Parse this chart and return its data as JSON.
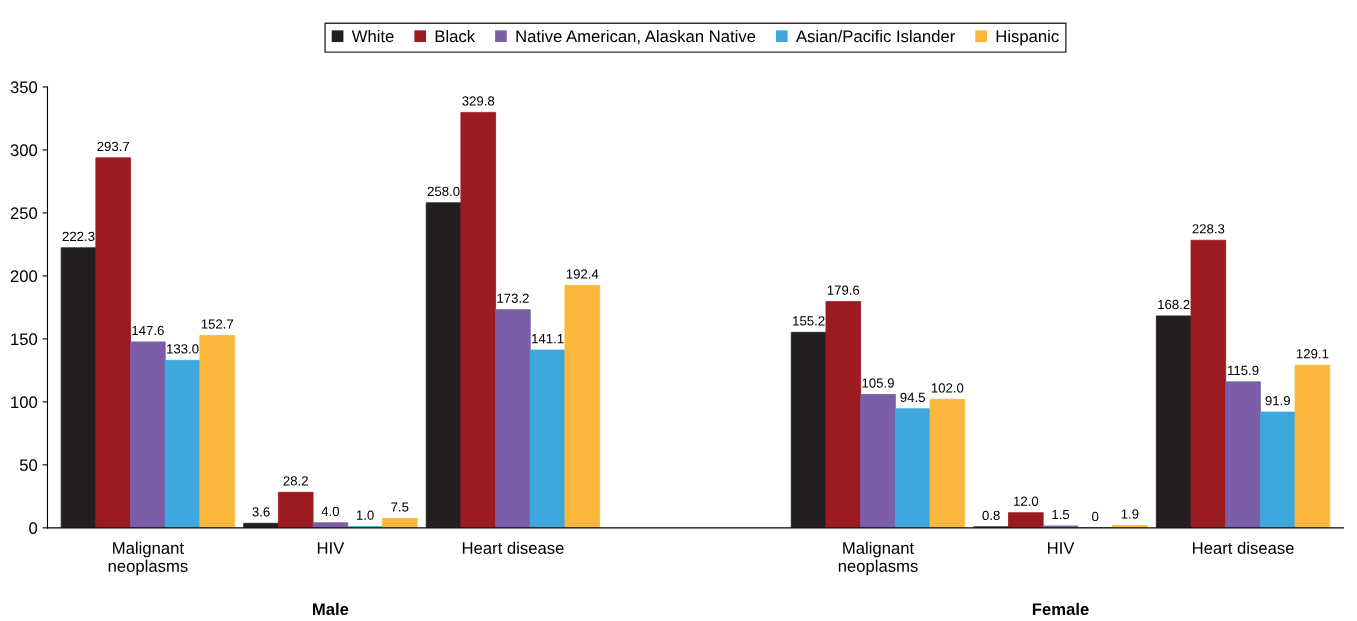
{
  "chart_data": {
    "type": "bar",
    "categories": [
      "Malignant\nneoplasms",
      "HIV",
      "Heart disease",
      null,
      "Malignant\nneoplasms",
      "HIV",
      "Heart disease"
    ],
    "series": [
      {
        "name": "White",
        "color": "#231f20",
        "values": [
          222.3,
          3.6,
          258.0,
          null,
          155.2,
          0.8,
          168.2
        ],
        "value_labels": [
          "222.3",
          "3.6",
          "258.0",
          null,
          "155.2",
          "0.8",
          "168.2"
        ]
      },
      {
        "name": "Black",
        "color": "#9b1b20",
        "values": [
          293.7,
          28.2,
          329.8,
          null,
          179.6,
          12.0,
          228.3
        ],
        "value_labels": [
          "293.7",
          "28.2",
          "329.8",
          null,
          "179.6",
          "12.0",
          "228.3"
        ]
      },
      {
        "name": "Native American, Alaskan Native",
        "color": "#7b5ea7",
        "values": [
          147.6,
          4.0,
          173.2,
          null,
          105.9,
          1.5,
          115.9
        ],
        "value_labels": [
          "147.6",
          "4.0",
          "173.2",
          null,
          "105.9",
          "1.5",
          "115.9"
        ]
      },
      {
        "name": "Asian/Pacific Islander",
        "color": "#3ea8dc",
        "values": [
          133.0,
          1.0,
          141.1,
          null,
          94.5,
          0,
          91.9
        ],
        "value_labels": [
          "133.0",
          "1.0",
          "141.1",
          null,
          "94.5",
          "0",
          "91.9"
        ]
      },
      {
        "name": "Hispanic",
        "color": "#fbb73c",
        "values": [
          152.7,
          7.5,
          192.4,
          null,
          102.0,
          1.9,
          129.1
        ],
        "value_labels": [
          "152.7",
          "7.5",
          "192.4",
          null,
          "102.0",
          "1.9",
          "129.1"
        ]
      }
    ],
    "annotations": [
      "Male",
      "Female"
    ],
    "ylim": [
      0,
      350
    ],
    "yticks": [
      0,
      50,
      100,
      150,
      200,
      250,
      300,
      350
    ],
    "legend": "top",
    "grid": false
  }
}
